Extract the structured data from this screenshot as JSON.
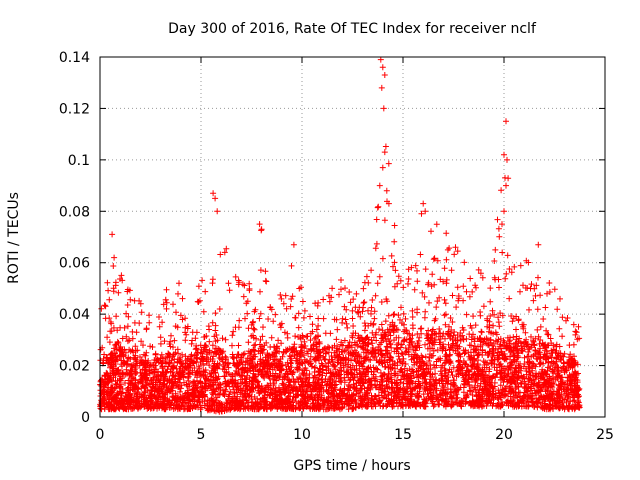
{
  "chart_data": {
    "type": "scatter",
    "title": "Day 300 of 2016, Rate Of TEC Index for receiver nclf",
    "xlabel": "GPS time / hours",
    "ylabel": "ROTI / TECUs",
    "xlim": [
      0,
      25
    ],
    "ylim": [
      0,
      0.14
    ],
    "grid": true,
    "marker": "+",
    "series": [
      {
        "name": "ROTI",
        "color": "#ff0000",
        "envelope": {
          "hours": [
            0,
            0.5,
            1,
            1.5,
            2,
            2.5,
            3,
            3.5,
            4,
            4.5,
            5,
            5.5,
            6,
            6.5,
            7,
            7.5,
            8,
            8.5,
            9,
            9.5,
            10,
            10.5,
            11,
            11.5,
            12,
            12.5,
            13,
            13.5,
            14,
            14.5,
            15,
            15.5,
            16,
            16.5,
            17,
            17.5,
            18,
            18.5,
            19,
            19.5,
            20,
            20.5,
            21,
            21.5,
            22,
            22.5,
            23,
            23.5,
            23.75
          ],
          "dense_top": [
            0.022,
            0.024,
            0.026,
            0.024,
            0.022,
            0.02,
            0.022,
            0.024,
            0.025,
            0.022,
            0.026,
            0.028,
            0.026,
            0.024,
            0.026,
            0.027,
            0.026,
            0.024,
            0.025,
            0.027,
            0.028,
            0.026,
            0.026,
            0.028,
            0.027,
            0.028,
            0.03,
            0.032,
            0.034,
            0.036,
            0.033,
            0.032,
            0.034,
            0.033,
            0.032,
            0.034,
            0.033,
            0.032,
            0.03,
            0.03,
            0.031,
            0.029,
            0.03,
            0.029,
            0.028,
            0.026,
            0.024,
            0.022,
            0.02
          ],
          "sparse_top": [
            0.04,
            0.06,
            0.057,
            0.05,
            0.045,
            0.04,
            0.04,
            0.058,
            0.055,
            0.05,
            0.056,
            0.05,
            0.087,
            0.055,
            0.059,
            0.05,
            0.075,
            0.045,
            0.05,
            0.067,
            0.05,
            0.045,
            0.05,
            0.055,
            0.058,
            0.05,
            0.055,
            0.06,
            0.139,
            0.08,
            0.06,
            0.06,
            0.083,
            0.075,
            0.075,
            0.065,
            0.065,
            0.06,
            0.055,
            0.06,
            0.115,
            0.065,
            0.07,
            0.06,
            0.055,
            0.055,
            0.04,
            0.043,
            0.035
          ],
          "floor": [
            0.003,
            0.003,
            0.003,
            0.003,
            0.003,
            0.003,
            0.003,
            0.003,
            0.003,
            0.003,
            0.003,
            0.002,
            0.002,
            0.003,
            0.003,
            0.003,
            0.003,
            0.003,
            0.003,
            0.003,
            0.003,
            0.003,
            0.003,
            0.003,
            0.003,
            0.003,
            0.004,
            0.004,
            0.004,
            0.004,
            0.004,
            0.004,
            0.004,
            0.004,
            0.004,
            0.004,
            0.004,
            0.004,
            0.004,
            0.004,
            0.004,
            0.004,
            0.004,
            0.004,
            0.003,
            0.003,
            0.003,
            0.003,
            0.003
          ]
        },
        "spikes": [
          {
            "x": 0.6,
            "y": 0.071
          },
          {
            "x": 0.7,
            "y": 0.062
          },
          {
            "x": 5.6,
            "y": 0.087
          },
          {
            "x": 5.7,
            "y": 0.085
          },
          {
            "x": 5.8,
            "y": 0.08
          },
          {
            "x": 7.9,
            "y": 0.075
          },
          {
            "x": 8.0,
            "y": 0.073
          },
          {
            "x": 9.6,
            "y": 0.067
          },
          {
            "x": 13.9,
            "y": 0.139
          },
          {
            "x": 14.0,
            "y": 0.136
          },
          {
            "x": 14.1,
            "y": 0.133
          },
          {
            "x": 13.95,
            "y": 0.128
          },
          {
            "x": 14.05,
            "y": 0.12
          },
          {
            "x": 14.1,
            "y": 0.103
          },
          {
            "x": 14.0,
            "y": 0.097
          },
          {
            "x": 13.85,
            "y": 0.09
          },
          {
            "x": 14.2,
            "y": 0.088
          },
          {
            "x": 14.3,
            "y": 0.083
          },
          {
            "x": 16.0,
            "y": 0.083
          },
          {
            "x": 16.1,
            "y": 0.08
          },
          {
            "x": 17.6,
            "y": 0.066
          },
          {
            "x": 20.1,
            "y": 0.115
          },
          {
            "x": 20.0,
            "y": 0.102
          },
          {
            "x": 20.15,
            "y": 0.1
          },
          {
            "x": 20.05,
            "y": 0.093
          },
          {
            "x": 20.1,
            "y": 0.09
          },
          {
            "x": 20.0,
            "y": 0.08
          },
          {
            "x": 19.9,
            "y": 0.075
          },
          {
            "x": 21.7,
            "y": 0.067
          }
        ]
      }
    ]
  }
}
